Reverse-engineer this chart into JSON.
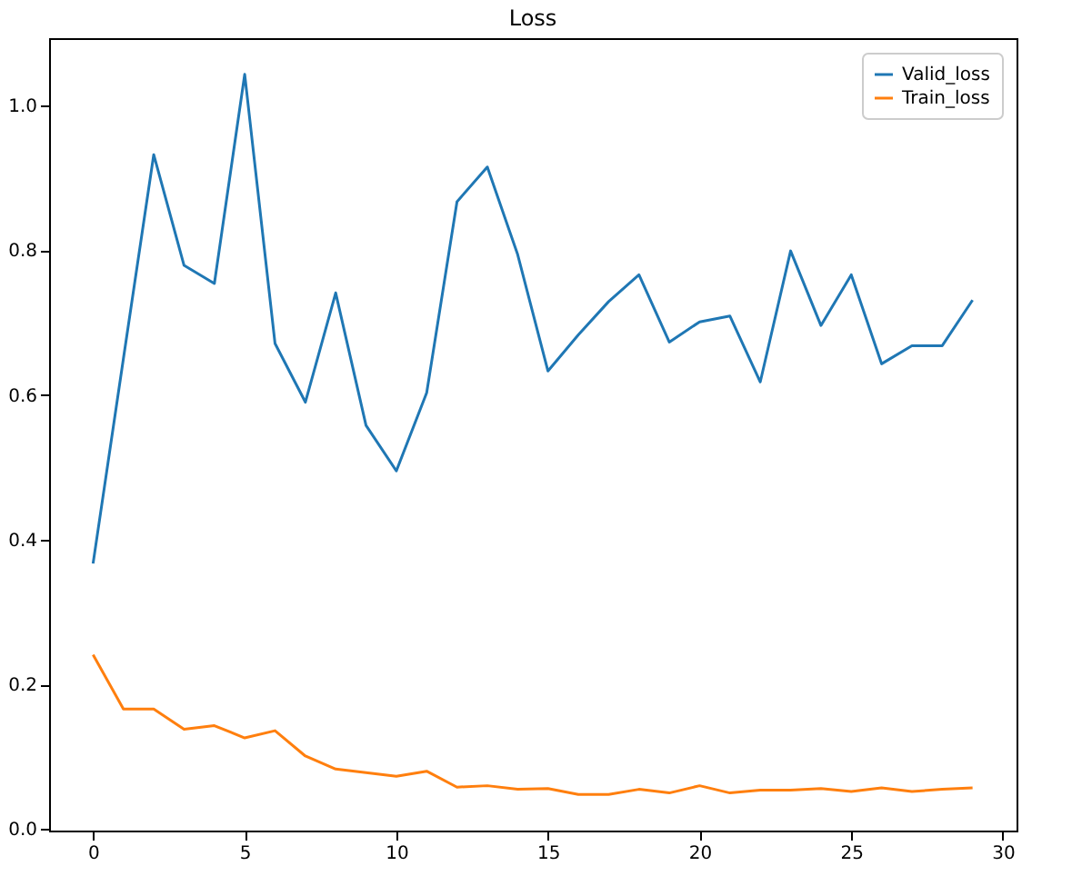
{
  "chart_data": {
    "type": "line",
    "title": "Loss",
    "x": [
      0,
      1,
      2,
      3,
      4,
      5,
      6,
      7,
      8,
      9,
      10,
      11,
      12,
      13,
      14,
      15,
      16,
      17,
      18,
      19,
      20,
      21,
      22,
      23,
      24,
      25,
      26,
      27,
      28,
      29
    ],
    "series": [
      {
        "name": "Valid_loss",
        "color": "#1f77b4",
        "values": [
          0.367,
          0.65,
          0.932,
          0.779,
          0.754,
          1.043,
          0.671,
          0.59,
          0.741,
          0.558,
          0.495,
          0.603,
          0.867,
          0.915,
          0.794,
          0.633,
          0.683,
          0.729,
          0.766,
          0.673,
          0.701,
          0.709,
          0.618,
          0.799,
          0.696,
          0.766,
          0.643,
          0.668,
          0.668,
          0.731
        ]
      },
      {
        "name": "Train_loss",
        "color": "#ff7f0e",
        "values": [
          0.241,
          0.166,
          0.166,
          0.138,
          0.143,
          0.126,
          0.136,
          0.101,
          0.083,
          0.078,
          0.073,
          0.08,
          0.058,
          0.06,
          0.055,
          0.056,
          0.048,
          0.048,
          0.055,
          0.05,
          0.06,
          0.05,
          0.054,
          0.054,
          0.056,
          0.052,
          0.057,
          0.052,
          0.055,
          0.057
        ]
      }
    ],
    "xlim": [
      -1.45,
      30.45
    ],
    "xticks": [
      0,
      5,
      10,
      15,
      20,
      25,
      30
    ],
    "ylim": [
      -0.002,
      1.093
    ],
    "yticks": [
      {
        "value": 0,
        "label": "0.0"
      },
      {
        "value": 0.2,
        "label": "0.2"
      },
      {
        "value": 0.4,
        "label": "0.4"
      },
      {
        "value": 0.6,
        "label": "0.6"
      },
      {
        "value": 0.8,
        "label": "0.8"
      },
      {
        "value": 1,
        "label": "1.0"
      }
    ],
    "grid": false,
    "legend": "top right",
    "marker": "none",
    "line_style": "solid"
  }
}
